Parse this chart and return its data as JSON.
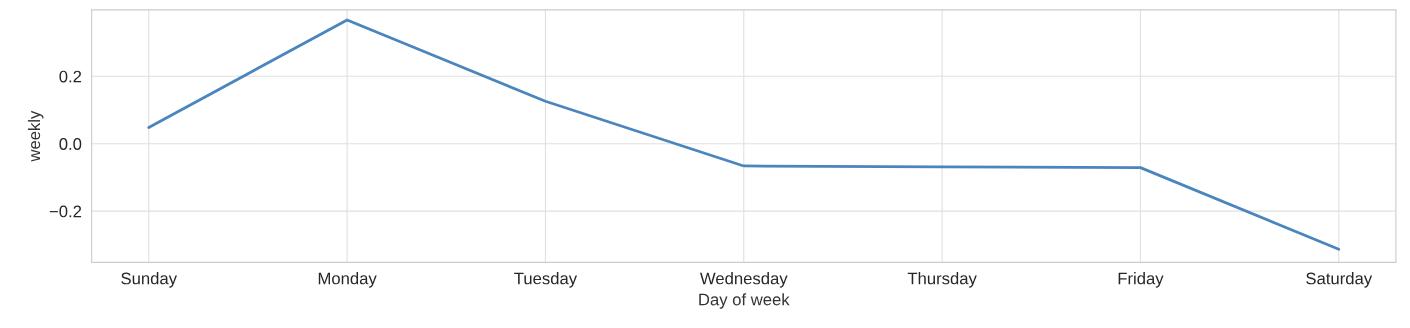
{
  "chart_data": {
    "type": "line",
    "xlabel": "Day of week",
    "ylabel": "weekly",
    "categories": [
      "Sunday",
      "Monday",
      "Tuesday",
      "Wednesday",
      "Thursday",
      "Friday",
      "Saturday"
    ],
    "series": [
      {
        "color": "#4a86bd",
        "values": [
          0.048,
          0.367,
          0.126,
          -0.066,
          -0.069,
          -0.071,
          -0.313
        ]
      }
    ],
    "ylim": [
      -0.352,
      0.397
    ],
    "yticks": [
      {
        "value": -0.2,
        "label": "−0.2"
      },
      {
        "value": 0.0,
        "label": "0.0"
      },
      {
        "value": 0.2,
        "label": "0.2"
      }
    ],
    "grid": true,
    "marker": "none",
    "line_style": "solid"
  }
}
